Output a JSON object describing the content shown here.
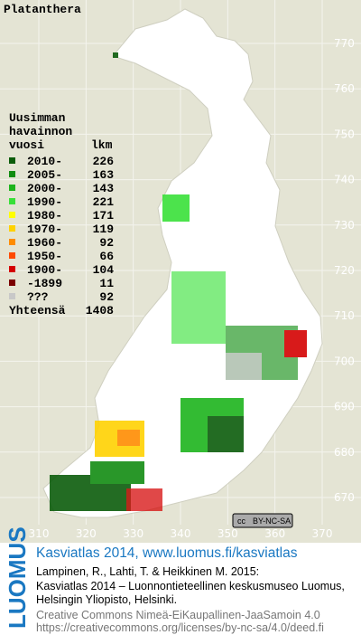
{
  "title": "Platanthera",
  "legend": {
    "heading": [
      "Uusimman",
      "havainnon",
      "vuosi"
    ],
    "count_heading": "lkm",
    "items": [
      {
        "label": "2010-",
        "count": 226,
        "color": "#0b5c0b"
      },
      {
        "label": "2005-",
        "count": 163,
        "color": "#118c11"
      },
      {
        "label": "2000-",
        "count": 143,
        "color": "#1cb41c"
      },
      {
        "label": "1990-",
        "count": 221,
        "color": "#38e038"
      },
      {
        "label": "1980-",
        "count": 171,
        "color": "#ffff00"
      },
      {
        "label": "1970-",
        "count": 119,
        "color": "#ffd200"
      },
      {
        "label": "1960-",
        "count": 92,
        "color": "#ff8c00"
      },
      {
        "label": "1950-",
        "count": 66,
        "color": "#ff4a00"
      },
      {
        "label": "1900-",
        "count": 104,
        "color": "#d40000"
      },
      {
        "label": "-1899",
        "count": 11,
        "color": "#7a0000"
      },
      {
        "label": "???",
        "count": 92,
        "color": "#c8c8c8"
      }
    ],
    "total_label": "Yhteensä",
    "total": 1408
  },
  "map": {
    "yticks": [
      770,
      760,
      750,
      740,
      730,
      720,
      710,
      700,
      690,
      680,
      670
    ],
    "xticks": [
      310,
      320,
      330,
      340,
      350,
      360,
      370
    ]
  },
  "license_badge": "BY-NC-SA",
  "footer": {
    "brand": "LUOMUS",
    "headline": "Kasviatlas 2014, www.luomus.fi/kasviatlas",
    "citation": [
      "Lampinen, R., Lahti, T. & Heikkinen M. 2015:",
      "Kasviatlas 2014 – Luonnontieteellinen keskusmuseo Luomus,",
      "Helsingin Yliopisto, Helsinki."
    ],
    "license": [
      "Creative Commons Nimeä-EiKaupallinen-JaaSamoin 4.0",
      "https://creativecommons.org/licenses/by-nc-sa/4.0/deed.fi"
    ]
  }
}
